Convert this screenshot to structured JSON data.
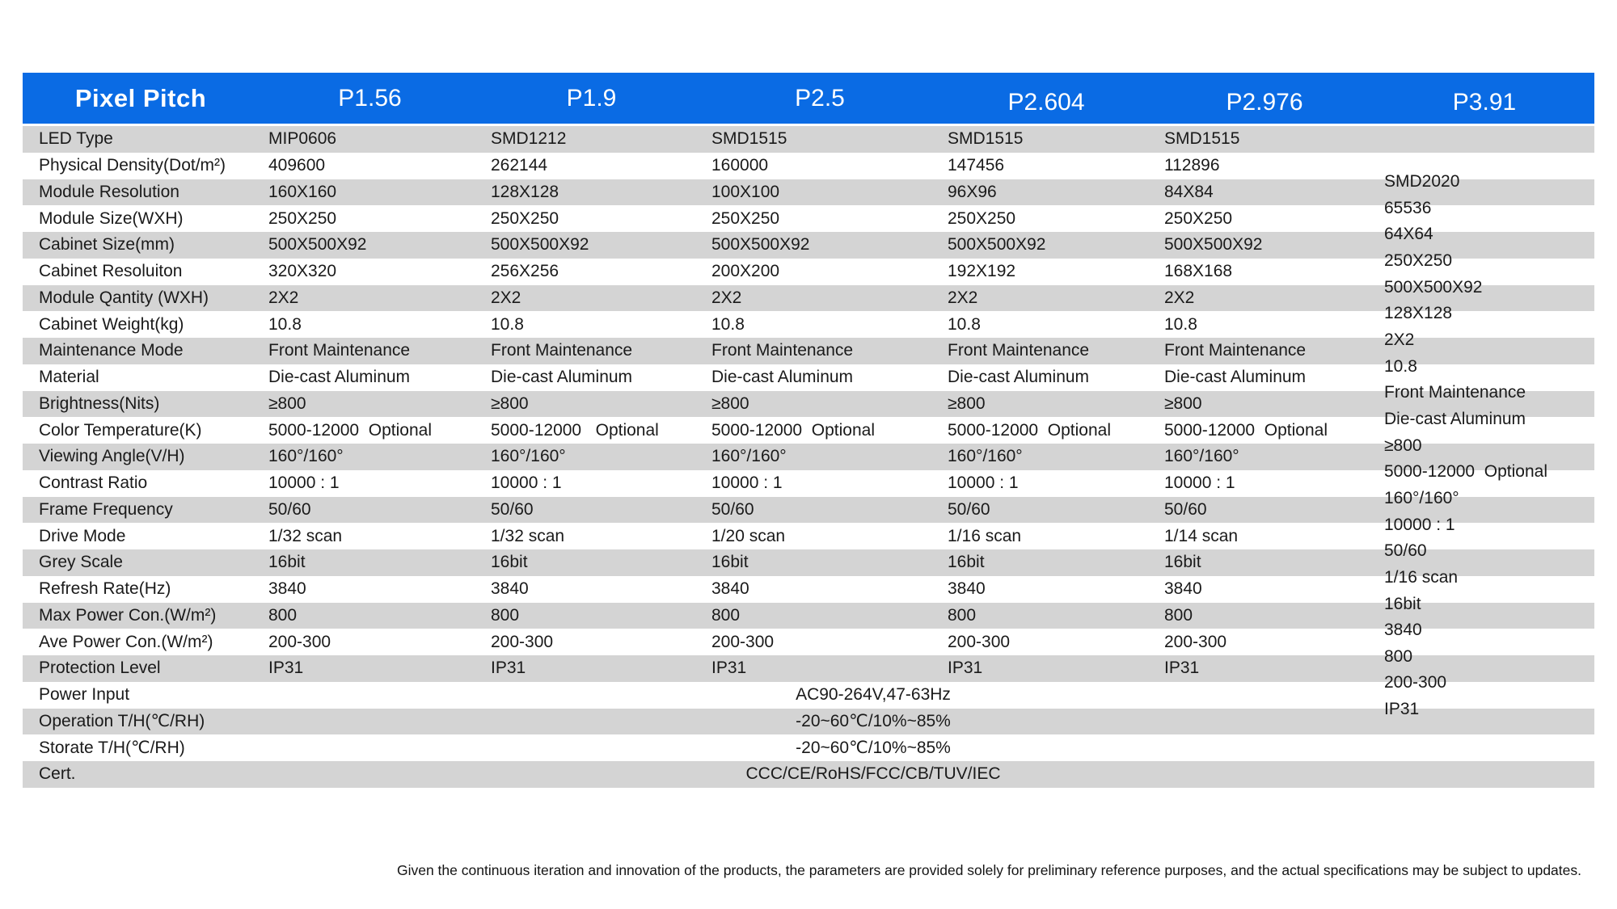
{
  "header": {
    "title": "Pixel Pitch",
    "columns": [
      "P1.56",
      "P1.9",
      "P2.5",
      "P2.604",
      "P2.976",
      "P3.91"
    ]
  },
  "table": {
    "rows": [
      {
        "label": "LED Type",
        "values": [
          "MIP0606",
          "SMD1212",
          "SMD1515",
          "SMD1515",
          "SMD1515"
        ]
      },
      {
        "label": "Physical Density(Dot/m²)",
        "values": [
          "409600",
          "262144",
          "160000",
          "147456",
          "112896"
        ]
      },
      {
        "label": "Module Resolution",
        "values": [
          "160X160",
          "128X128",
          "100X100",
          "96X96",
          "84X84"
        ]
      },
      {
        "label": "Module Size(WXH)",
        "values": [
          "250X250",
          "250X250",
          "250X250",
          "250X250",
          "250X250"
        ]
      },
      {
        "label": "Cabinet Size(mm)",
        "values": [
          "500X500X92",
          "500X500X92",
          "500X500X92",
          "500X500X92",
          "500X500X92"
        ]
      },
      {
        "label": "Cabinet Resoluiton",
        "values": [
          "320X320",
          "256X256",
          "200X200",
          "192X192",
          "168X168"
        ]
      },
      {
        "label": "Module Qantity (WXH)",
        "values": [
          "2X2",
          "2X2",
          "2X2",
          "2X2",
          "2X2"
        ]
      },
      {
        "label": "Cabinet Weight(kg)",
        "values": [
          "10.8",
          "10.8",
          "10.8",
          "10.8",
          "10.8"
        ]
      },
      {
        "label": "Maintenance Mode",
        "values": [
          "Front Maintenance",
          "Front Maintenance",
          "Front Maintenance",
          "Front Maintenance",
          "Front Maintenance"
        ]
      },
      {
        "label": "Material",
        "values": [
          "Die-cast Aluminum",
          "Die-cast Aluminum",
          "Die-cast Aluminum",
          "Die-cast Aluminum",
          "Die-cast Aluminum"
        ]
      },
      {
        "label": "Brightness(Nits)",
        "values": [
          "≥800",
          "≥800",
          "≥800",
          "≥800",
          "≥800"
        ]
      },
      {
        "label": "Color Temperature(K)",
        "values": [
          "5000-12000  Optional",
          "5000-12000   Optional",
          "5000-12000  Optional",
          "5000-12000  Optional",
          "5000-12000  Optional"
        ]
      },
      {
        "label": "Viewing Angle(V/H)",
        "values": [
          "160°/160°",
          "160°/160°",
          "160°/160°",
          "160°/160°",
          "160°/160°"
        ]
      },
      {
        "label": "Contrast Ratio",
        "values": [
          "10000 : 1",
          "10000 : 1",
          "10000 : 1",
          "10000 : 1",
          "10000 : 1"
        ]
      },
      {
        "label": "Frame Frequency",
        "values": [
          "50/60",
          "50/60",
          "50/60",
          "50/60",
          "50/60"
        ]
      },
      {
        "label": "Drive Mode",
        "values": [
          "1/32 scan",
          "1/32 scan",
          "1/20 scan",
          "1/16 scan",
          "1/14 scan"
        ]
      },
      {
        "label": "Grey Scale",
        "values": [
          "16bit",
          "16bit",
          "16bit",
          "16bit",
          "16bit"
        ]
      },
      {
        "label": "Refresh Rate(Hz)",
        "values": [
          "3840",
          "3840",
          "3840",
          "3840",
          "3840"
        ]
      },
      {
        "label": "Max Power Con.(W/m²)",
        "values": [
          "800",
          "800",
          "800",
          "800",
          "800"
        ]
      },
      {
        "label": "Ave Power Con.(W/m²)",
        "values": [
          "200-300",
          "200-300",
          "200-300",
          "200-300",
          "200-300"
        ]
      },
      {
        "label": "Protection Level",
        "values": [
          "IP31",
          "IP31",
          "IP31",
          "IP31",
          "IP31"
        ]
      },
      {
        "label": "Power Input",
        "merged": "AC90-264V,47-63Hz"
      },
      {
        "label": "Operation T/H(℃/RH)",
        "merged": "-20~60℃/10%~85%"
      },
      {
        "label": "Storate T/H(℃/RH)",
        "merged": "-20~60℃/10%~85%"
      },
      {
        "label": "Cert.",
        "merged": "CCC/CE/RoHS/FCC/CB/TUV/IEC"
      }
    ],
    "p391_column": [
      "SMD2020",
      "65536",
      "64X64",
      "250X250",
      "500X500X92",
      "128X128",
      "2X2",
      "10.8",
      "Front Maintenance",
      "Die-cast Aluminum",
      "≥800",
      "5000-12000  Optional",
      "160°/160°",
      "10000 : 1",
      "50/60",
      "1/16 scan",
      "16bit",
      "3840",
      "800",
      "200-300",
      "IP31"
    ]
  },
  "footer": {
    "note": "Given the continuous iteration and innovation of the products, the parameters are provided solely for preliminary reference purposes, and the actual specifications may be subject to updates."
  },
  "colors": {
    "header_bg": "#0a6be4",
    "stripe": "#d4d4d4",
    "header_text": "#ffffff",
    "body_text": "#1a1a1a"
  }
}
